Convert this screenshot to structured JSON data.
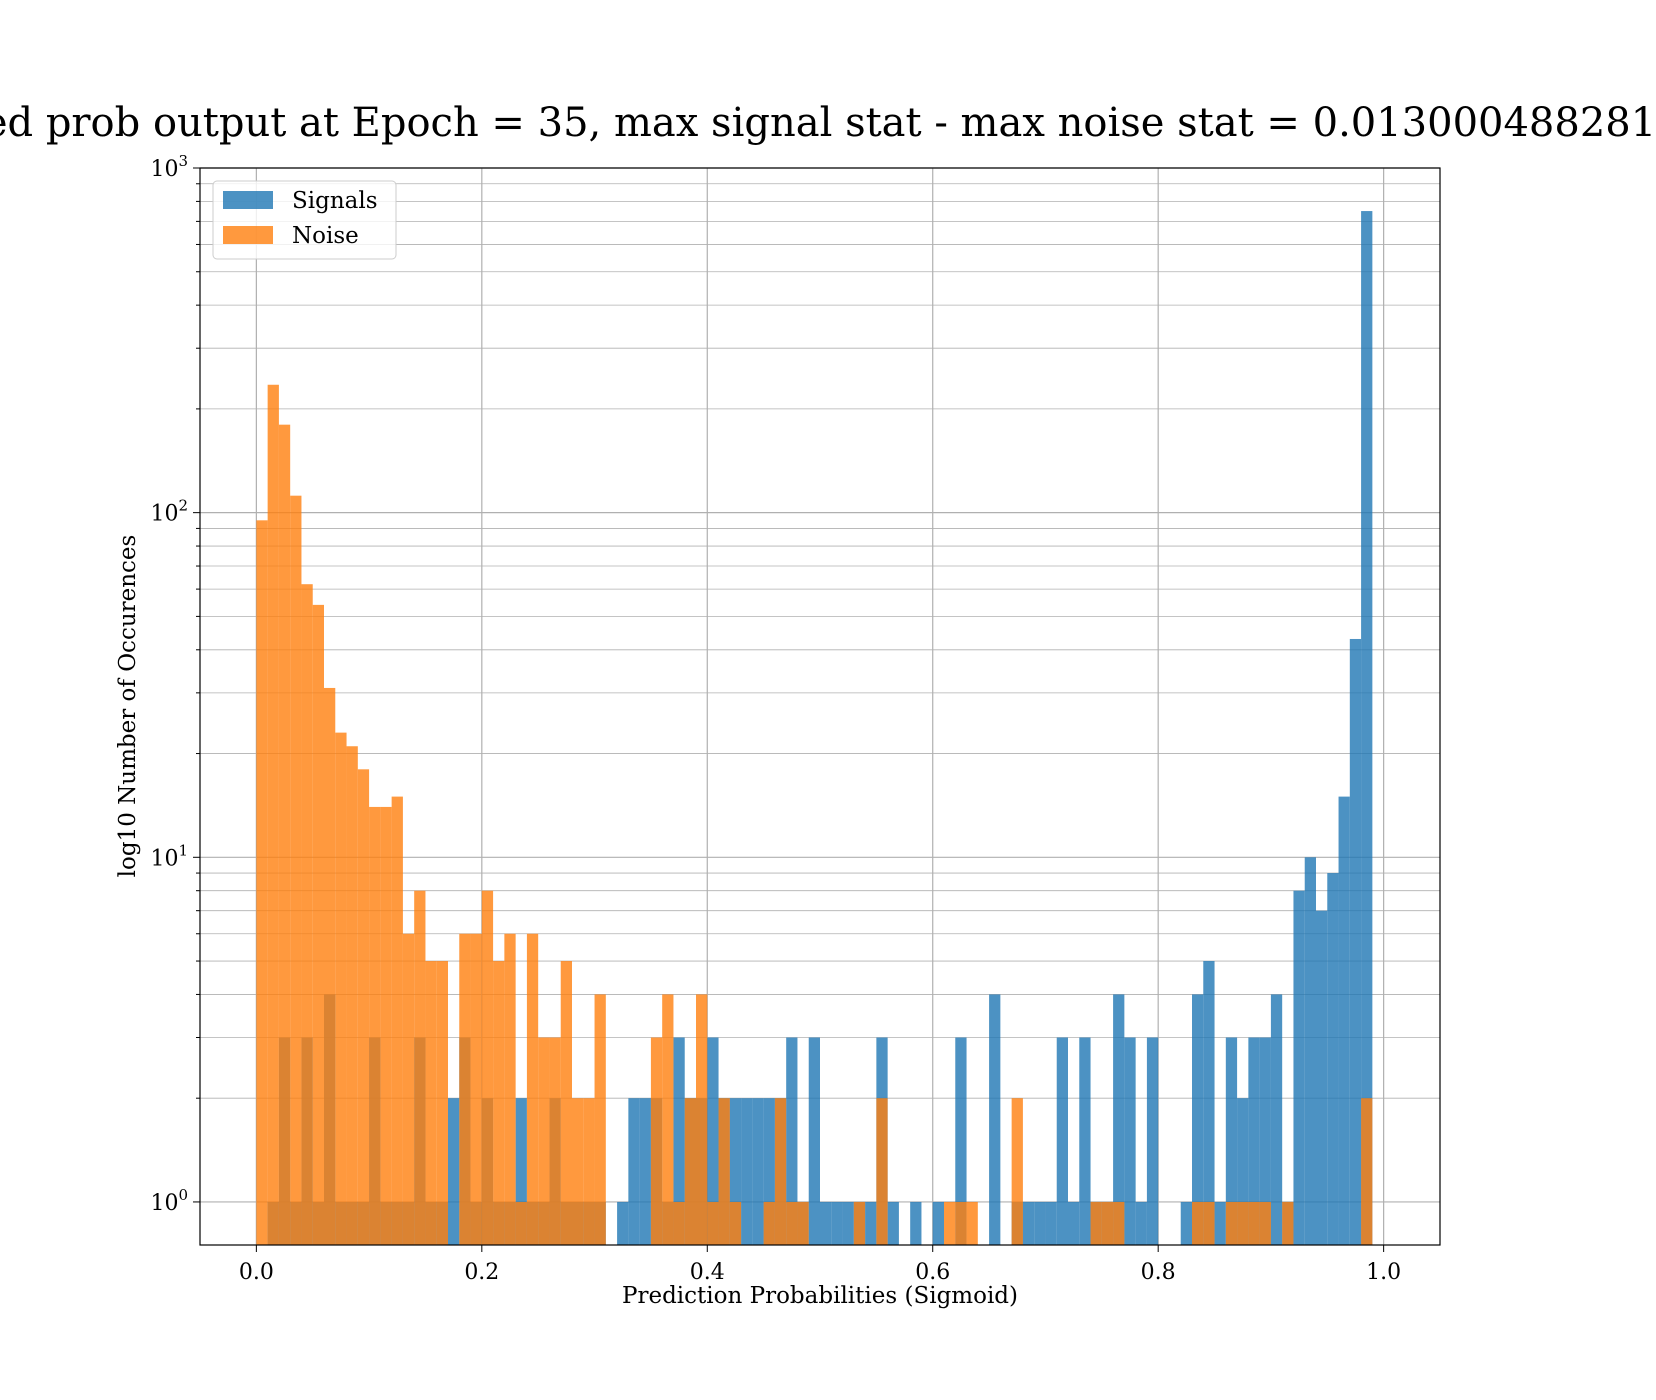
{
  "chart_data": {
    "type": "bar",
    "title": "ed prob output at Epoch = 35, max signal stat - max noise stat = 0.013000488281",
    "xlabel": "Prediction Probabilities (Sigmoid)",
    "ylabel": "log10 Number of Occurences",
    "xlim": [
      -0.05,
      1.05
    ],
    "ylim": [
      0.75,
      1000
    ],
    "yscale": "log",
    "grid": true,
    "legend_position": "top-left",
    "bin_width": 0.01,
    "x_ticks": [
      "0.0",
      "0.2",
      "0.4",
      "0.6",
      "0.8",
      "1.0"
    ],
    "y_ticks": [
      {
        "base": "10",
        "exp": "0"
      },
      {
        "base": "10",
        "exp": "1"
      },
      {
        "base": "10",
        "exp": "2"
      },
      {
        "base": "10",
        "exp": "3"
      }
    ],
    "series": [
      {
        "name": "Signals",
        "color": "#1f77b4",
        "values": [
          0,
          1,
          3,
          1,
          3,
          1,
          4,
          1,
          1,
          1,
          3,
          1,
          1,
          1,
          3,
          1,
          1,
          2,
          3,
          1,
          2,
          1,
          1,
          2,
          1,
          1,
          2,
          1,
          1,
          1,
          1,
          0,
          1,
          2,
          2,
          2,
          1,
          3,
          2,
          2,
          3,
          2,
          2,
          2,
          2,
          2,
          2,
          3,
          1,
          3,
          1,
          1,
          1,
          1,
          1,
          3,
          1,
          0,
          1,
          0,
          1,
          0,
          3,
          0,
          0,
          4,
          0,
          1,
          1,
          1,
          1,
          3,
          1,
          3,
          1,
          1,
          4,
          3,
          1,
          3,
          0,
          0,
          1,
          4,
          5,
          1,
          3,
          2,
          3,
          3,
          4,
          1,
          8,
          10,
          7,
          9,
          15,
          43,
          750,
          0
        ]
      },
      {
        "name": "Noise",
        "color": "#ff7f0e",
        "values": [
          95,
          235,
          180,
          112,
          62,
          54,
          31,
          23,
          21,
          18,
          14,
          14,
          15,
          6,
          8,
          5,
          5,
          0,
          6,
          6,
          8,
          5,
          6,
          1,
          6,
          3,
          3,
          5,
          2,
          2,
          4,
          0,
          0,
          0,
          0,
          3,
          4,
          1,
          2,
          4,
          1,
          2,
          1,
          0,
          0,
          1,
          2,
          1,
          1,
          0,
          0,
          0,
          0,
          1,
          0,
          2,
          0,
          0,
          0,
          0,
          0,
          1,
          1,
          1,
          0,
          0,
          0,
          2,
          0,
          0,
          0,
          0,
          0,
          0,
          1,
          1,
          1,
          0,
          0,
          0,
          0,
          0,
          0,
          1,
          1,
          0,
          1,
          1,
          1,
          1,
          0,
          1,
          0,
          0,
          0,
          0,
          0,
          0,
          2,
          0
        ]
      }
    ]
  }
}
